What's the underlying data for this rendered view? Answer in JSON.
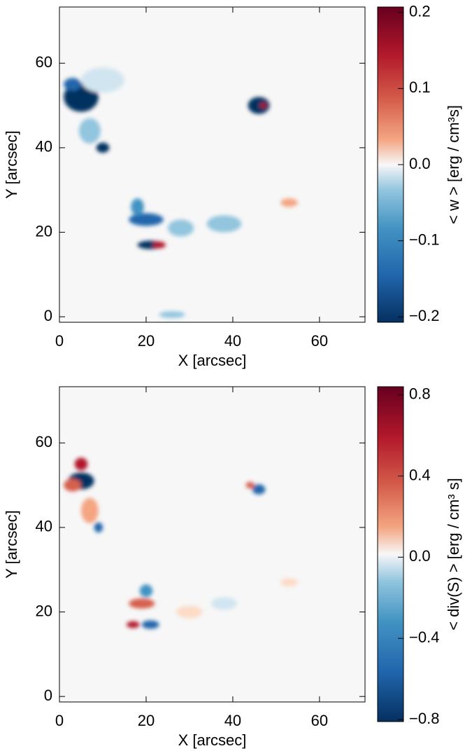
{
  "chart_data": [
    {
      "type": "heatmap",
      "xlabel": "X [arcsec]",
      "ylabel": "Y [arcsec]",
      "xlim": [
        0,
        70.5
      ],
      "ylim": [
        -1.3,
        73.3
      ],
      "xticks": [
        0,
        20,
        40,
        60
      ],
      "yticks": [
        0,
        20,
        40,
        60
      ],
      "colormap": "RdBu_r",
      "colorbar": {
        "label": "< w > [erg / cm³s]",
        "clim": [
          -0.207,
          0.207
        ],
        "ticks": [
          {
            "value": 0.2,
            "label": "0.2"
          },
          {
            "value": 0.1,
            "label": "0.1"
          },
          {
            "value": 0,
            "label": "0.0"
          },
          {
            "value": -0.1,
            "label": "−0.1"
          },
          {
            "value": -0.2,
            "label": "−0.2"
          }
        ]
      }
    },
    {
      "type": "heatmap",
      "xlabel": "X [arcsec]",
      "ylabel": "Y [arcsec]",
      "xlim": [
        0,
        70.5
      ],
      "ylim": [
        -1.3,
        73.3
      ],
      "xticks": [
        0,
        20,
        40,
        60
      ],
      "yticks": [
        0,
        20,
        40,
        60
      ],
      "colormap": "RdBu_r",
      "colorbar": {
        "label": "< div(S) > [erg / cm³ s]",
        "clim": [
          -0.81,
          0.84
        ],
        "ticks": [
          {
            "value": 0.8,
            "label": "0.8"
          },
          {
            "value": 0.4,
            "label": "0.4"
          },
          {
            "value": 0,
            "label": "0.0"
          },
          {
            "value": -0.4,
            "label": "−0.4"
          },
          {
            "value": -0.8,
            "label": "−0.8"
          }
        ]
      }
    }
  ]
}
